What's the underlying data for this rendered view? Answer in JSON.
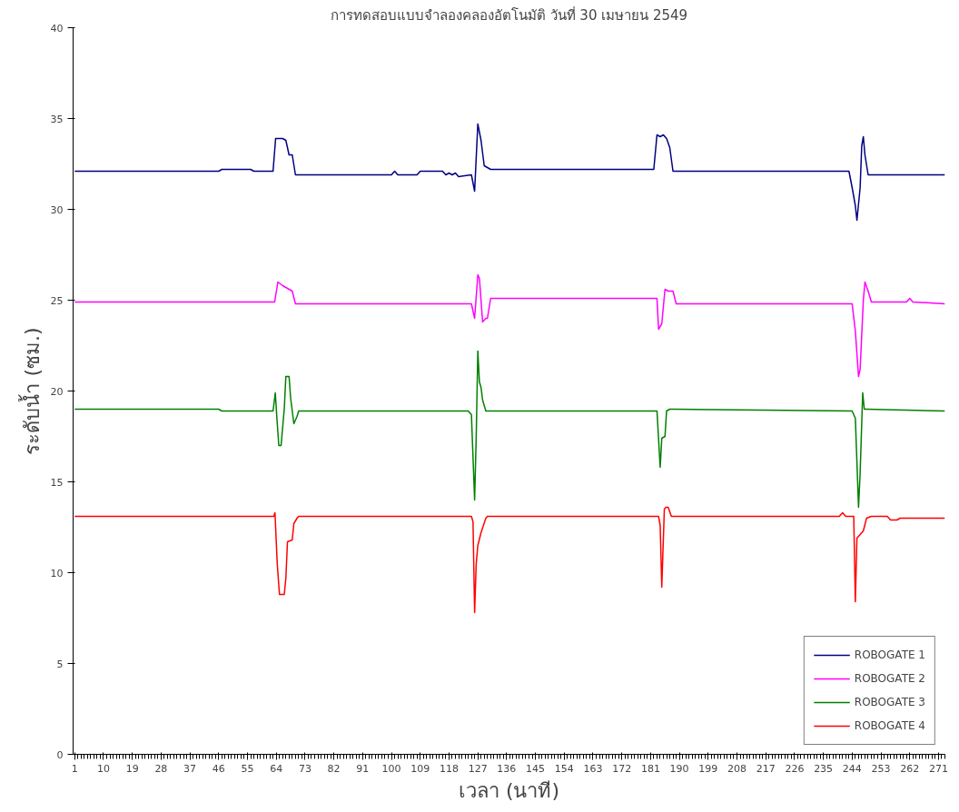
{
  "chart_data": {
    "type": "line",
    "title": "การทดสอบแบบจำลองคลองอัตโนมัติ วันที่ 30 เมษายน 2549",
    "xlabel": "เวลา (นาที)",
    "ylabel": "ระดับน้ำ (ซม.)",
    "xlim": [
      0.5,
      273
    ],
    "xticks": [
      1,
      10,
      19,
      28,
      37,
      46,
      55,
      64,
      73,
      82,
      91,
      100,
      109,
      118,
      127,
      136,
      145,
      154,
      163,
      172,
      181,
      190,
      199,
      208,
      217,
      226,
      235,
      244,
      253,
      262,
      271
    ],
    "ylim": [
      0,
      40
    ],
    "yticks": [
      0,
      5,
      10,
      15,
      20,
      25,
      30,
      35,
      40
    ],
    "grid": false,
    "legend": "bottom right",
    "line_style": "solid",
    "marker": "none",
    "series": [
      {
        "name": "ROBOGATE 1",
        "color": "#000080",
        "x": [
          1,
          46,
          47,
          56,
          57,
          63,
          63.8,
          64.5,
          66,
          67,
          68,
          69,
          70,
          90,
          100,
          101,
          102,
          108,
          109,
          116,
          117,
          118,
          119,
          120,
          121,
          125,
          126,
          127,
          128,
          129,
          131,
          136,
          182,
          183,
          184,
          185,
          186,
          187,
          188,
          190,
          240,
          243,
          244,
          245,
          245.5,
          246.5,
          247,
          247.5,
          248,
          249,
          250,
          273
        ],
        "values": [
          32.1,
          32.1,
          32.2,
          32.2,
          32.1,
          32.1,
          33.9,
          33.9,
          33.9,
          33.8,
          33.0,
          33.0,
          31.9,
          31.9,
          31.9,
          32.1,
          31.9,
          31.9,
          32.1,
          32.1,
          31.9,
          32.0,
          31.9,
          32.0,
          31.8,
          31.9,
          31.0,
          34.7,
          33.8,
          32.4,
          32.2,
          32.2,
          32.2,
          34.1,
          34.0,
          34.1,
          33.9,
          33.4,
          32.1,
          32.1,
          32.1,
          32.1,
          31.2,
          30.2,
          29.4,
          31.2,
          33.5,
          34.0,
          33.0,
          31.9,
          31.9,
          31.9
        ]
      },
      {
        "name": "ROBOGATE 2",
        "color": "#ff00ff",
        "x": [
          1,
          63.5,
          64.5,
          66,
          68,
          69,
          70,
          125,
          125.5,
          126,
          127,
          127.5,
          128.5,
          129.5,
          130,
          131,
          140,
          183,
          183.5,
          184.5,
          185.5,
          186.5,
          188,
          189,
          190,
          244,
          245,
          246,
          246.5,
          247.5,
          248,
          249,
          250,
          261,
          262,
          263,
          273
        ],
        "values": [
          24.9,
          24.9,
          26.0,
          25.8,
          25.6,
          25.5,
          24.8,
          24.8,
          24.4,
          24.0,
          26.4,
          26.2,
          23.8,
          24.0,
          24.0,
          25.1,
          25.1,
          25.1,
          23.4,
          23.7,
          25.6,
          25.5,
          25.5,
          24.8,
          24.8,
          24.8,
          23.3,
          20.8,
          21.2,
          25.0,
          26.0,
          25.5,
          24.9,
          24.9,
          25.1,
          24.9,
          24.8
        ]
      },
      {
        "name": "ROBOGATE 3",
        "color": "#008000",
        "x": [
          1,
          46,
          47,
          63,
          63.7,
          64.2,
          64.8,
          65.5,
          66.5,
          67,
          68,
          68.5,
          69.5,
          70.5,
          71,
          100,
          101,
          124,
          125,
          126,
          126.5,
          127,
          127.5,
          128,
          128.5,
          129.5,
          130,
          182,
          183,
          184,
          184.5,
          185.5,
          186,
          187,
          188,
          244,
          245,
          246,
          246.5,
          247.3,
          247.8,
          248.5,
          273
        ],
        "values": [
          19.0,
          19.0,
          18.9,
          18.9,
          19.9,
          18.5,
          17.0,
          17.0,
          19.0,
          20.8,
          20.8,
          19.6,
          18.2,
          18.6,
          18.9,
          18.9,
          18.9,
          18.9,
          18.7,
          14.0,
          17.5,
          22.2,
          20.5,
          20.2,
          19.5,
          18.9,
          18.9,
          18.9,
          18.9,
          15.8,
          17.4,
          17.5,
          18.9,
          19.0,
          19.0,
          18.9,
          18.5,
          13.6,
          15.5,
          19.9,
          19.0,
          19.0,
          18.9
        ]
      },
      {
        "name": "ROBOGATE 4",
        "color": "#ff0000",
        "x": [
          1,
          63.2,
          63.6,
          64.3,
          65,
          66.5,
          67,
          67.5,
          69,
          69.5,
          70.5,
          71,
          125,
          125.5,
          126,
          126.5,
          127,
          128,
          129.5,
          130,
          183.5,
          184,
          184.5,
          185.3,
          185.8,
          186.5,
          187.5,
          240,
          241,
          242,
          244.5,
          245,
          245.5,
          246.5,
          247.5,
          248.5,
          250,
          255,
          256,
          258,
          259,
          273
        ],
        "values": [
          13.1,
          13.1,
          13.3,
          10.5,
          8.8,
          8.8,
          9.7,
          11.7,
          11.8,
          12.7,
          13.0,
          13.1,
          13.1,
          12.8,
          7.8,
          10.5,
          11.5,
          12.2,
          13.0,
          13.1,
          13.1,
          12.6,
          9.2,
          13.5,
          13.6,
          13.6,
          13.1,
          13.1,
          13.3,
          13.1,
          13.1,
          8.4,
          11.9,
          12.1,
          12.3,
          13.0,
          13.1,
          13.1,
          12.9,
          12.9,
          13.0,
          13.0
        ]
      }
    ]
  }
}
